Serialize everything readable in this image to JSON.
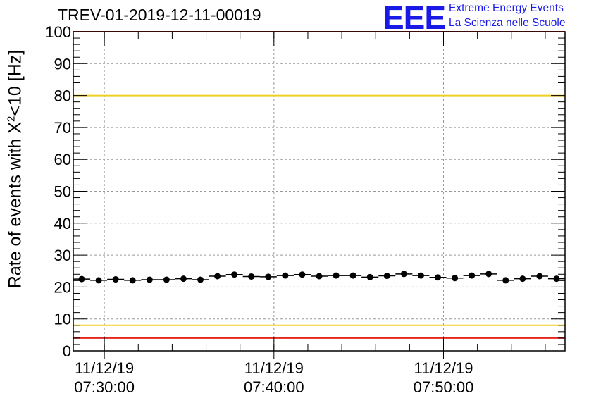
{
  "chart_data": {
    "type": "scatter",
    "title": "TREV-01-2019-12-11-00019",
    "ylabel_prefix": "Rate of events with X",
    "ylabel_sup": "2",
    "ylabel_suffix": "<10 [Hz]",
    "xlabel": "",
    "ylim": [
      0,
      100
    ],
    "yticks": [
      "0",
      "10",
      "20",
      "30",
      "40",
      "50",
      "60",
      "70",
      "80",
      "90",
      "100"
    ],
    "x_unit": "minutes",
    "xlim": [
      "07:28:10",
      "07:57:10"
    ],
    "xticks": [
      {
        "at": "07:30:00",
        "date": "11/12/19",
        "time": "07:30:00"
      },
      {
        "at": "07:40:00",
        "date": "11/12/19",
        "time": "07:40:00"
      },
      {
        "at": "07:50:00",
        "date": "11/12/19",
        "time": "07:50:00"
      }
    ],
    "grid": true,
    "reference_lines": [
      {
        "y": 80,
        "color": "#f0d020"
      },
      {
        "y": 8,
        "color": "#f0d020"
      },
      {
        "y": 100,
        "color": "#e8241c"
      },
      {
        "y": 4,
        "color": "#e8241c"
      }
    ],
    "x_half_width_min": 0.5,
    "series": [
      {
        "color": "#000000",
        "x": [
          "07:28:40",
          "07:29:40",
          "07:30:40",
          "07:31:40",
          "07:32:40",
          "07:33:40",
          "07:34:40",
          "07:35:40",
          "07:36:40",
          "07:37:40",
          "07:38:40",
          "07:39:40",
          "07:40:40",
          "07:41:40",
          "07:42:40",
          "07:43:40",
          "07:44:40",
          "07:45:40",
          "07:46:40",
          "07:47:40",
          "07:48:40",
          "07:49:40",
          "07:50:40",
          "07:51:40",
          "07:52:40",
          "07:53:40",
          "07:54:40",
          "07:55:40",
          "07:56:40"
        ],
        "y": [
          22.5,
          22.1,
          22.4,
          22.1,
          22.3,
          22.3,
          22.6,
          22.3,
          23.4,
          23.9,
          23.3,
          23.2,
          23.6,
          23.9,
          23.4,
          23.6,
          23.6,
          23.1,
          23.5,
          24.1,
          23.6,
          23.0,
          22.8,
          23.6,
          24.1,
          22.1,
          22.6,
          23.4,
          22.6
        ]
      }
    ]
  },
  "logo": {
    "mark": "EEE",
    "line1": "Extreme Energy Events",
    "line2": "La Scienza nelle Scuole"
  }
}
